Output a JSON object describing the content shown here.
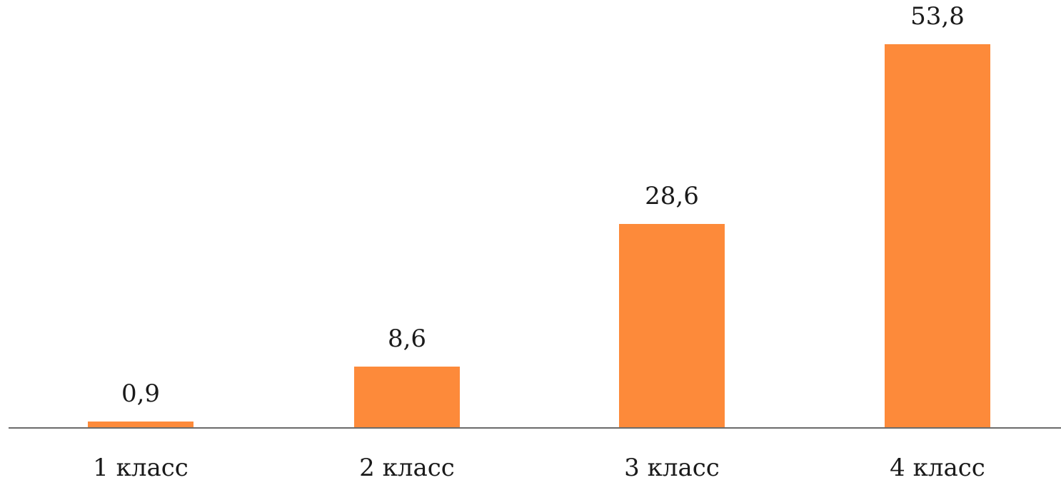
{
  "chart_data": {
    "type": "bar",
    "title": "",
    "xlabel": "",
    "ylabel": "",
    "categories": [
      "1 класс",
      "2 класс",
      "3 класс",
      "4 класс"
    ],
    "values": [
      0.9,
      8.6,
      28.6,
      53.8
    ],
    "value_labels": [
      "0,9",
      "8,6",
      "28,6",
      "53,8"
    ],
    "ylim": [
      0,
      53.8
    ],
    "grid": false,
    "legend": "none",
    "colors": {
      "bar": "#fd8a3a",
      "axis": "#6b6b6b",
      "text": "#1a1a1a"
    }
  }
}
